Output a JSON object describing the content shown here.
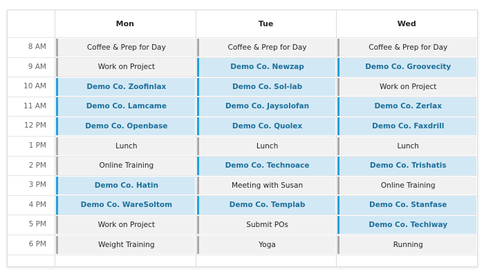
{
  "days": [
    "Mon",
    "Tue",
    "Wed"
  ],
  "rows": [
    {
      "time": "8 AM",
      "cells": [
        {
          "text": "Coffee & Prep for Day",
          "highlight": false
        },
        {
          "text": "Coffee & Prep for Day",
          "highlight": false
        },
        {
          "text": "Coffee & Prep for Day",
          "highlight": false
        }
      ]
    },
    {
      "time": "9 AM",
      "cells": [
        {
          "text": "Work on Project",
          "highlight": false
        },
        {
          "text": "Demo Co. Newzap",
          "highlight": true
        },
        {
          "text": "Demo Co. Groovecity",
          "highlight": true
        }
      ]
    },
    {
      "time": "10 AM",
      "cells": [
        {
          "text": "Demo Co. Zoofinlax",
          "highlight": true
        },
        {
          "text": "Demo Co. Sol-lab",
          "highlight": true
        },
        {
          "text": "Work on Project",
          "highlight": false
        }
      ]
    },
    {
      "time": "11 AM",
      "cells": [
        {
          "text": "Demo Co. Lamcame",
          "highlight": true
        },
        {
          "text": "Demo Co. Jaysolofan",
          "highlight": true
        },
        {
          "text": "Demo Co. Zerlax",
          "highlight": true
        }
      ]
    },
    {
      "time": "12 PM",
      "cells": [
        {
          "text": "Demo Co. Openbase",
          "highlight": true
        },
        {
          "text": "Demo Co. Quolex",
          "highlight": true
        },
        {
          "text": "Demo Co. Faxdrill",
          "highlight": true
        }
      ]
    },
    {
      "time": "1 PM",
      "cells": [
        {
          "text": "Lunch",
          "highlight": false
        },
        {
          "text": "Lunch",
          "highlight": false
        },
        {
          "text": "Lunch",
          "highlight": false
        }
      ]
    },
    {
      "time": "2 PM",
      "cells": [
        {
          "text": "Online Training",
          "highlight": false
        },
        {
          "text": "Demo Co. Technoace",
          "highlight": true
        },
        {
          "text": "Demo Co. Trishatis",
          "highlight": true
        }
      ]
    },
    {
      "time": "3 PM",
      "cells": [
        {
          "text": "Demo Co. Hatin",
          "highlight": true
        },
        {
          "text": "Meeting with Susan",
          "highlight": false
        },
        {
          "text": "Online Training",
          "highlight": false
        }
      ]
    },
    {
      "time": "4 PM",
      "cells": [
        {
          "text": "Demo Co. WareSoltom",
          "highlight": true
        },
        {
          "text": "Demo Co. Templab",
          "highlight": true
        },
        {
          "text": "Demo Co. Stanfase",
          "highlight": true
        }
      ]
    },
    {
      "time": "5 PM",
      "cells": [
        {
          "text": "Work on Project",
          "highlight": false
        },
        {
          "text": "Submit POs",
          "highlight": false
        },
        {
          "text": "Demo Co. Techiway",
          "highlight": true
        }
      ]
    },
    {
      "time": "6 PM",
      "cells": [
        {
          "text": "Weight Training",
          "highlight": false
        },
        {
          "text": "Yoga",
          "highlight": false
        },
        {
          "text": "Running",
          "highlight": false
        }
      ]
    }
  ]
}
